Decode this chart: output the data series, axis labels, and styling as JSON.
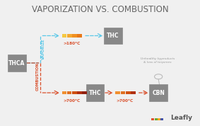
{
  "title": "VAPORIZATION VS. COMBUSTION",
  "title_fontsize": 8.5,
  "title_color": "#666666",
  "background_color": "#f0f0f0",
  "thca_label": "THCA",
  "thc_vap_label": "THC",
  "thc_comb_label": "THC",
  "cbn_label": "CBN",
  "vaporize_label": "VAPORIZE",
  "combustion_label": "COMBUSTION",
  "temp_vap": ">180°C",
  "temp_comb1": ">700°C",
  "temp_comb2": ">700°C",
  "unhealthy_text": "Unhealthy byproducts\n& loss of terpenes",
  "box_facecolor": "#888888",
  "box_textcolor": "#ffffff",
  "vap_arrow_color": "#5bc8e8",
  "comb_arrow_color": "#d94f2b",
  "heat_colors_vap": [
    "#f5c842",
    "#f5a830",
    "#f09020",
    "#e87818"
  ],
  "heat_colors_comb1": [
    "#f09030",
    "#e07020",
    "#d05010",
    "#b03010",
    "#902010"
  ],
  "heat_colors_comb2": [
    "#f09030",
    "#e07020",
    "#d05010",
    "#b03010"
  ],
  "leafly_logo_colors": [
    "#e05030",
    "#6aaa35",
    "#f5a623",
    "#4455aa"
  ],
  "leafly_text": "Leafly"
}
